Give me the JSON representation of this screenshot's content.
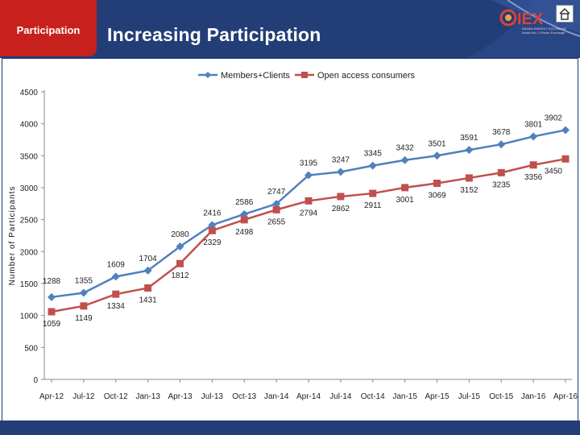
{
  "header": {
    "tag": "Participation",
    "title": "Increasing Participation",
    "logo_text": "IEX",
    "logo_sub": "INDIAN ENERGY EXCHANGE",
    "logo_tagline": "India's No. 1 Power Exchange"
  },
  "colors": {
    "header_bg": "#233d77",
    "tag_bg": "#c8211d",
    "series_members": "#4f81bd",
    "series_open_access": "#c0504d"
  },
  "chart_data": {
    "type": "line",
    "title": "",
    "xlabel": "",
    "ylabel": "Number of Participants",
    "ylim": [
      0,
      4500
    ],
    "yticks": [
      0,
      500,
      1000,
      1500,
      2000,
      2500,
      3000,
      3500,
      4000,
      4500
    ],
    "categories": [
      "Apr-12",
      "Jul-12",
      "Oct-12",
      "Jan-13",
      "Apr-13",
      "Jul-13",
      "Oct-13",
      "Jan-14",
      "Apr-14",
      "Jul-14",
      "Oct-14",
      "Jan-15",
      "Apr-15",
      "Jul-15",
      "Oct-15",
      "Jan-16",
      "Apr-16"
    ],
    "series": [
      {
        "name": "Members+Clients",
        "values": [
          1288,
          1355,
          1609,
          1704,
          2080,
          2416,
          2586,
          2747,
          3195,
          3247,
          3345,
          3432,
          3501,
          3591,
          3678,
          3801,
          3902
        ]
      },
      {
        "name": "Open access consumers",
        "values": [
          1059,
          1149,
          1334,
          1431,
          1812,
          2329,
          2498,
          2655,
          2794,
          2862,
          2911,
          3001,
          3069,
          3152,
          3235,
          3356,
          3450
        ]
      }
    ],
    "legend_position": "top"
  }
}
